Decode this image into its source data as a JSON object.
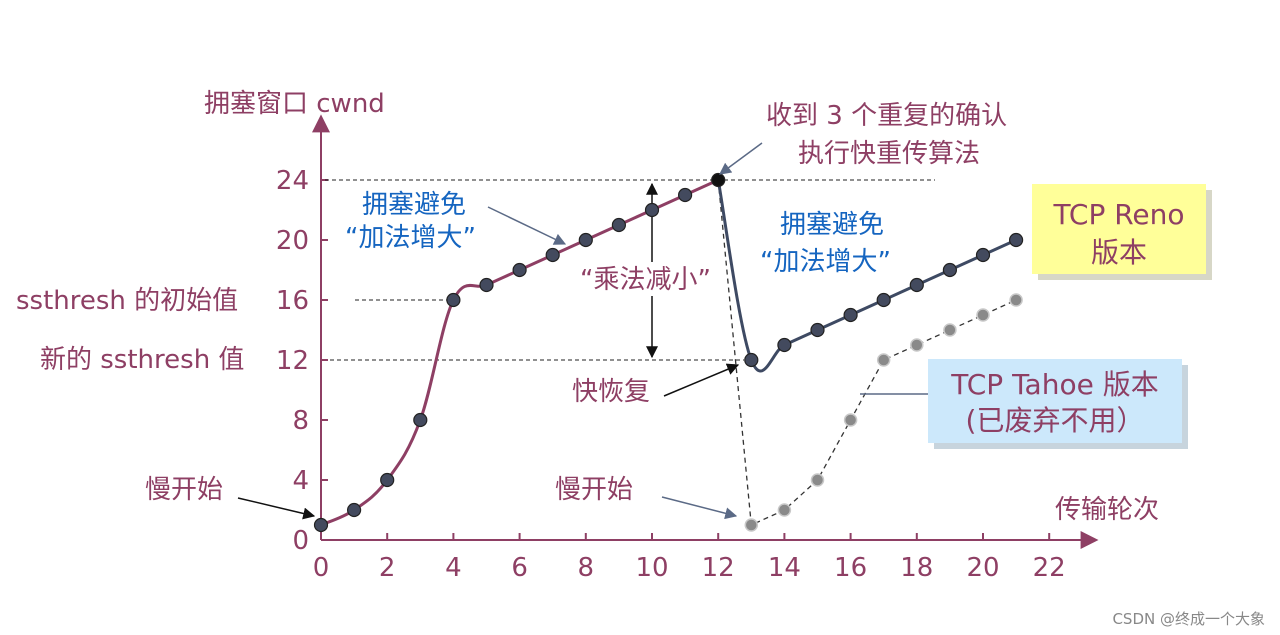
{
  "chart_data": {
    "type": "line",
    "title": "",
    "xlabel": "传输轮次",
    "ylabel": "拥塞窗口 cwnd",
    "xlim": [
      0,
      23
    ],
    "ylim": [
      0,
      27
    ],
    "x_ticks": [
      0,
      2,
      4,
      6,
      8,
      10,
      12,
      14,
      16,
      18,
      20,
      22
    ],
    "y_ticks": [
      0,
      4,
      8,
      12,
      16,
      20,
      24
    ],
    "y_tick_labels": [
      "0",
      "4",
      "8",
      "12",
      "16",
      "20",
      "24"
    ],
    "series": [
      {
        "name": "TCP Reno 版本",
        "color": "#8e3f64",
        "style": "solid",
        "x": [
          0,
          1,
          2,
          3,
          4,
          5,
          6,
          7,
          8,
          9,
          10,
          11,
          12
        ],
        "y": [
          1,
          2,
          4,
          8,
          16,
          17,
          18,
          19,
          20,
          21,
          22,
          23,
          24
        ]
      },
      {
        "name": "TCP Reno 版本",
        "color": "#3e4a63",
        "style": "solid",
        "x": [
          12,
          13,
          14,
          15,
          16,
          17,
          18,
          19,
          20,
          21
        ],
        "y": [
          24,
          12,
          13,
          14,
          15,
          16,
          17,
          18,
          19,
          20
        ]
      },
      {
        "name": "TCP Tahoe 版本",
        "color": "#808080",
        "style": "dashed",
        "x": [
          12,
          13,
          14,
          15,
          16,
          17,
          18,
          19,
          20,
          21
        ],
        "y": [
          24,
          1,
          2,
          4,
          8,
          12,
          13,
          14,
          15,
          16
        ]
      }
    ],
    "annotations": {
      "slow_start_left": "慢开始",
      "cong_avoid_1_line1": "拥塞避免",
      "cong_avoid_1_line2": "“加法增大”",
      "mult_decrease": "“乘法减小”",
      "triple_ack_line1": "收到 3 个重复的确认",
      "triple_ack_line2": "执行快重传算法",
      "cong_avoid_2_line1": "拥塞避免",
      "cong_avoid_2_line2": "“加法增大”",
      "fast_recovery": "快恢复",
      "slow_start_right": "慢开始",
      "ssthresh_initial": "ssthresh 的初始值",
      "ssthresh_new": "新的 ssthresh 值"
    },
    "reno_box": {
      "line1": "TCP Reno",
      "line2": "版本"
    },
    "tahoe_box": {
      "line1": "TCP Tahoe 版本",
      "line2": "(已废弃不用）"
    },
    "watermark": "CSDN @终成一个大象",
    "grid": false
  }
}
